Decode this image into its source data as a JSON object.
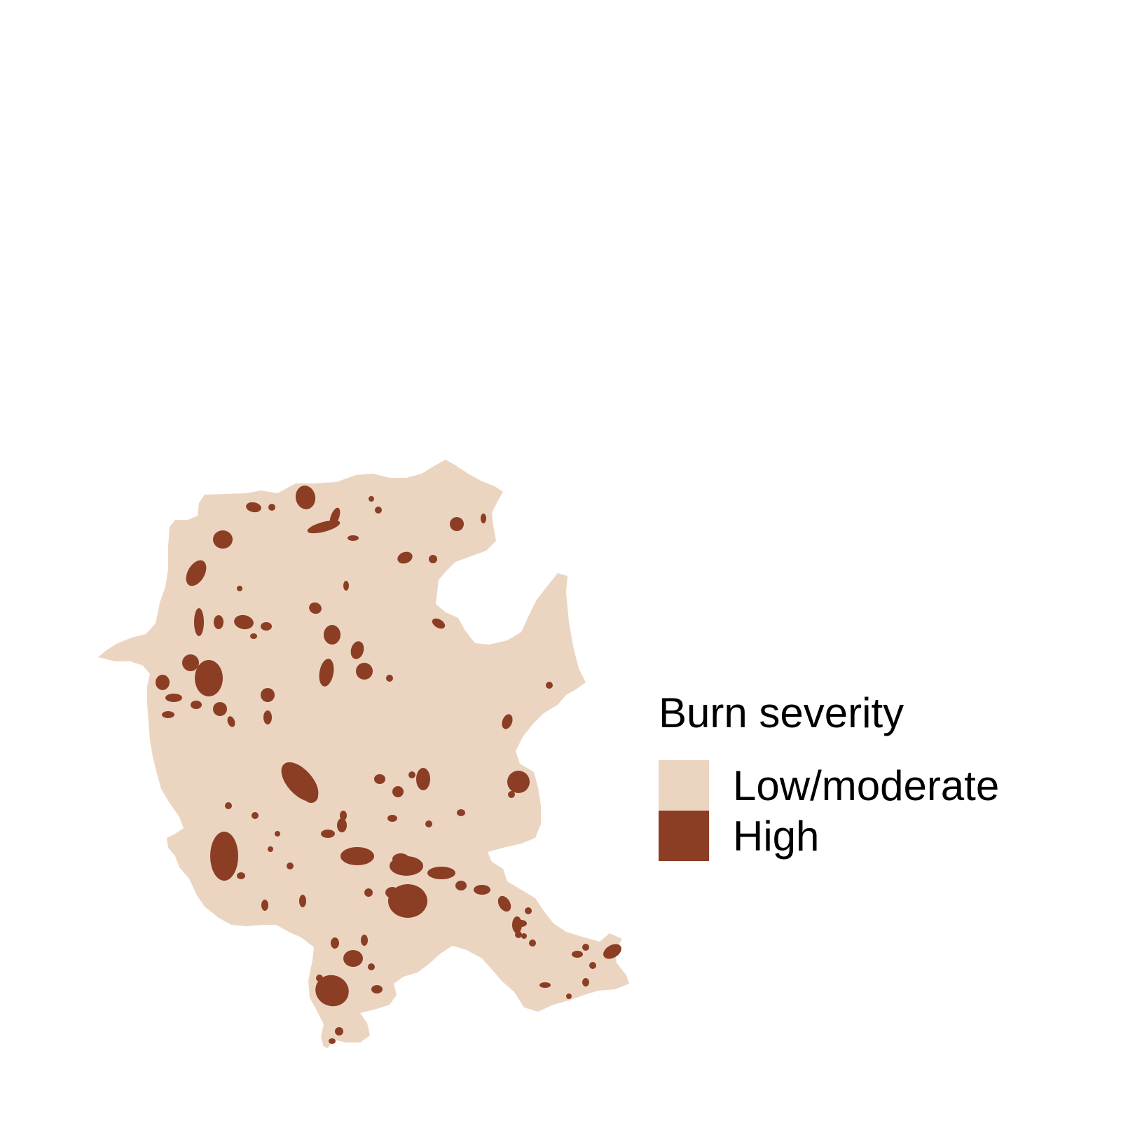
{
  "map": {
    "colors": {
      "background": "#ffffff",
      "low_moderate": "#EBD5C1",
      "high": "#8B3E23"
    }
  },
  "legend": {
    "title": "Burn severity",
    "items": [
      {
        "label": "Low/moderate",
        "color": "#EBD5C1"
      },
      {
        "label": "High",
        "color": "#8B3E23"
      }
    ]
  }
}
